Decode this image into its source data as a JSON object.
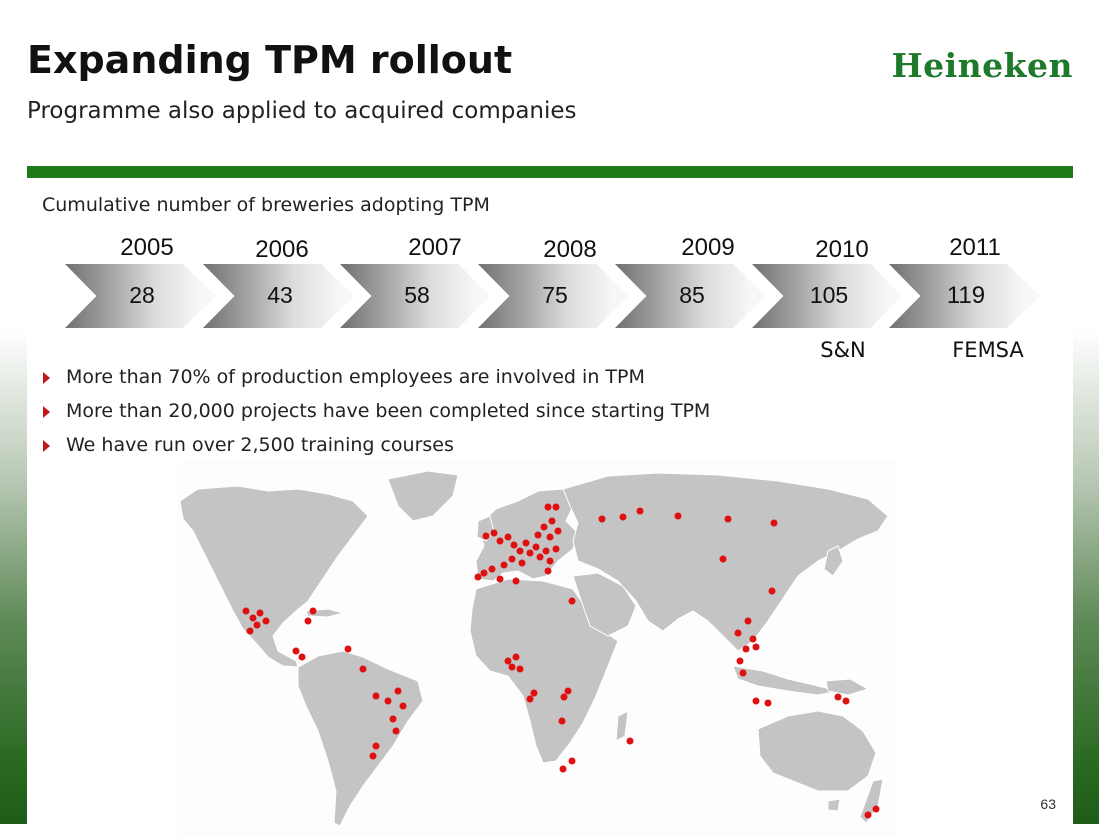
{
  "header": {
    "title": "Expanding TPM rollout",
    "subtitle": "Programme also applied to acquired companies",
    "logo_text": "Heineken",
    "brand_color": "#1d7a2a"
  },
  "panel": {
    "heading": "Cumulative number of breweries adopting TPM",
    "accent_color": "#1f7b19"
  },
  "timeline": [
    {
      "year": "2005",
      "value": "28"
    },
    {
      "year": "2006",
      "value": "43"
    },
    {
      "year": "2007",
      "value": "58"
    },
    {
      "year": "2008",
      "value": "75"
    },
    {
      "year": "2009",
      "value": "85"
    },
    {
      "year": "2010",
      "value": "105",
      "acquisition": "S&N"
    },
    {
      "year": "2011",
      "value": "119",
      "acquisition": "FEMSA"
    }
  ],
  "bullets": [
    "More than 70% of production employees are involved in TPM",
    "More than 20,000 projects have been completed since starting TPM",
    "We have run over 2,500 training courses"
  ],
  "map": {
    "land_color": "#c4c4c4",
    "dot_color": "#e01010",
    "icon": "world-map-icon"
  },
  "page_number": "63"
}
